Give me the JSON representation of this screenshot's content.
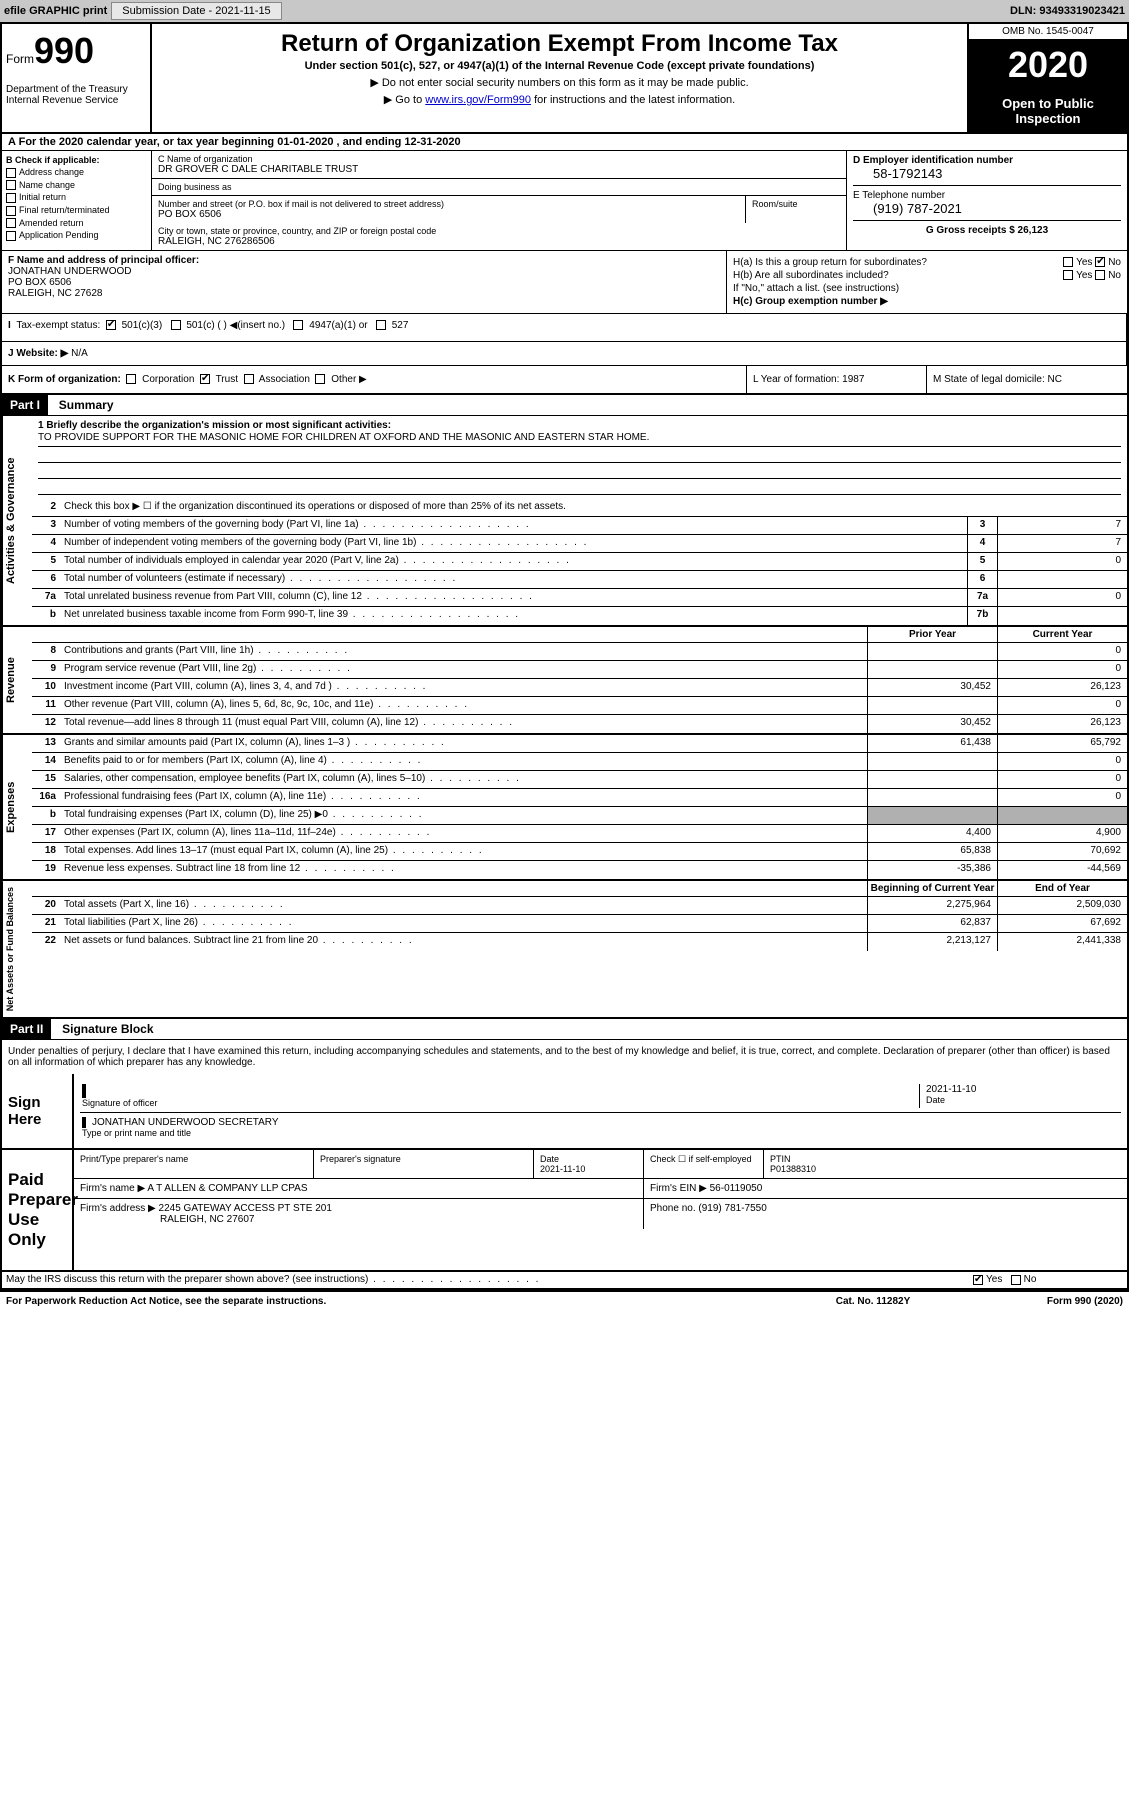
{
  "topbar": {
    "efile": "efile GRAPHIC print",
    "submission_label": "Submission Date - 2021-11-15",
    "dln": "DLN: 93493319023421"
  },
  "header": {
    "form_label": "Form",
    "form_number": "990",
    "dept": "Department of the Treasury\nInternal Revenue Service",
    "title": "Return of Organization Exempt From Income Tax",
    "subtitle": "Under section 501(c), 527, or 4947(a)(1) of the Internal Revenue Code (except private foundations)",
    "note1": "▶ Do not enter social security numbers on this form as it may be made public.",
    "note2_pre": "▶ Go to ",
    "note2_link": "www.irs.gov/Form990",
    "note2_post": " for instructions and the latest information.",
    "omb": "OMB No. 1545-0047",
    "year": "2020",
    "inspection": "Open to Public Inspection"
  },
  "period": {
    "text": "For the 2020 calendar year, or tax year beginning 01-01-2020   , and ending 12-31-2020"
  },
  "section_b": {
    "header": "B Check if applicable:",
    "items": [
      "Address change",
      "Name change",
      "Initial return",
      "Final return/terminated",
      "Amended return",
      "Application Pending"
    ]
  },
  "section_c": {
    "name_label": "C Name of organization",
    "name": "DR GROVER C DALE CHARITABLE TRUST",
    "dba_label": "Doing business as",
    "dba": "",
    "addr_label": "Number and street (or P.O. box if mail is not delivered to street address)",
    "room_label": "Room/suite",
    "addr": "PO BOX 6506",
    "city_label": "City or town, state or province, country, and ZIP or foreign postal code",
    "city": "RALEIGH, NC  276286506"
  },
  "section_d": {
    "ein_label": "D Employer identification number",
    "ein": "58-1792143",
    "phone_label": "E Telephone number",
    "phone": "(919) 787-2021",
    "gross_label": "G Gross receipts $ 26,123"
  },
  "section_f": {
    "label": "F  Name and address of principal officer:",
    "name": "JONATHAN UNDERWOOD",
    "addr": "PO BOX 6506",
    "city": "RALEIGH, NC  27628"
  },
  "section_h": {
    "ha_label": "H(a)  Is this a group return for subordinates?",
    "hb_label": "H(b)  Are all subordinates included?",
    "hb_note": "If \"No,\" attach a list. (see instructions)",
    "hc_label": "H(c)  Group exemption number ▶"
  },
  "section_i": {
    "label": "Tax-exempt status:",
    "opts": [
      "501(c)(3)",
      "501(c) (  ) ◀(insert no.)",
      "4947(a)(1) or",
      "527"
    ]
  },
  "section_j": {
    "label": "J   Website: ▶",
    "value": "N/A"
  },
  "section_k": {
    "label": "K Form of organization:",
    "opts": [
      "Corporation",
      "Trust",
      "Association",
      "Other ▶"
    ]
  },
  "section_l": {
    "label": "L Year of formation: 1987"
  },
  "section_m": {
    "label": "M State of legal domicile: NC"
  },
  "part1": {
    "header": "Part I",
    "title": "Summary",
    "line1_label": "1   Briefly describe the organization's mission or most significant activities:",
    "line1_text": "TO PROVIDE SUPPORT FOR THE MASONIC HOME FOR CHILDREN AT OXFORD AND THE MASONIC AND EASTERN STAR HOME.",
    "line2": "Check this box ▶ ☐  if the organization discontinued its operations or disposed of more than 25% of its net assets.",
    "gov_lines": [
      {
        "n": "3",
        "d": "Number of voting members of the governing body (Part VI, line 1a)",
        "box": "3",
        "v": "7"
      },
      {
        "n": "4",
        "d": "Number of independent voting members of the governing body (Part VI, line 1b)",
        "box": "4",
        "v": "7"
      },
      {
        "n": "5",
        "d": "Total number of individuals employed in calendar year 2020 (Part V, line 2a)",
        "box": "5",
        "v": "0"
      },
      {
        "n": "6",
        "d": "Total number of volunteers (estimate if necessary)",
        "box": "6",
        "v": ""
      },
      {
        "n": "7a",
        "d": "Total unrelated business revenue from Part VIII, column (C), line 12",
        "box": "7a",
        "v": "0"
      },
      {
        "n": "b",
        "d": "Net unrelated business taxable income from Form 990-T, line 39",
        "box": "7b",
        "v": ""
      }
    ],
    "col_headers": {
      "prior": "Prior Year",
      "current": "Current Year"
    },
    "rev_lines": [
      {
        "n": "8",
        "d": "Contributions and grants (Part VIII, line 1h)",
        "p": "",
        "c": "0"
      },
      {
        "n": "9",
        "d": "Program service revenue (Part VIII, line 2g)",
        "p": "",
        "c": "0"
      },
      {
        "n": "10",
        "d": "Investment income (Part VIII, column (A), lines 3, 4, and 7d )",
        "p": "30,452",
        "c": "26,123"
      },
      {
        "n": "11",
        "d": "Other revenue (Part VIII, column (A), lines 5, 6d, 8c, 9c, 10c, and 11e)",
        "p": "",
        "c": "0"
      },
      {
        "n": "12",
        "d": "Total revenue—add lines 8 through 11 (must equal Part VIII, column (A), line 12)",
        "p": "30,452",
        "c": "26,123"
      }
    ],
    "exp_lines": [
      {
        "n": "13",
        "d": "Grants and similar amounts paid (Part IX, column (A), lines 1–3 )",
        "p": "61,438",
        "c": "65,792"
      },
      {
        "n": "14",
        "d": "Benefits paid to or for members (Part IX, column (A), line 4)",
        "p": "",
        "c": "0"
      },
      {
        "n": "15",
        "d": "Salaries, other compensation, employee benefits (Part IX, column (A), lines 5–10)",
        "p": "",
        "c": "0"
      },
      {
        "n": "16a",
        "d": "Professional fundraising fees (Part IX, column (A), line 11e)",
        "p": "",
        "c": "0"
      },
      {
        "n": "b",
        "d": "Total fundraising expenses (Part IX, column (D), line 25) ▶0",
        "p": "shade",
        "c": "shade"
      },
      {
        "n": "17",
        "d": "Other expenses (Part IX, column (A), lines 11a–11d, 11f–24e)",
        "p": "4,400",
        "c": "4,900"
      },
      {
        "n": "18",
        "d": "Total expenses. Add lines 13–17 (must equal Part IX, column (A), line 25)",
        "p": "65,838",
        "c": "70,692"
      },
      {
        "n": "19",
        "d": "Revenue less expenses. Subtract line 18 from line 12",
        "p": "-35,386",
        "c": "-44,569"
      }
    ],
    "net_headers": {
      "begin": "Beginning of Current Year",
      "end": "End of Year"
    },
    "net_lines": [
      {
        "n": "20",
        "d": "Total assets (Part X, line 16)",
        "p": "2,275,964",
        "c": "2,509,030"
      },
      {
        "n": "21",
        "d": "Total liabilities (Part X, line 26)",
        "p": "62,837",
        "c": "67,692"
      },
      {
        "n": "22",
        "d": "Net assets or fund balances. Subtract line 21 from line 20",
        "p": "2,213,127",
        "c": "2,441,338"
      }
    ],
    "vert_labels": {
      "gov": "Activities & Governance",
      "rev": "Revenue",
      "exp": "Expenses",
      "net": "Net Assets or Fund Balances"
    }
  },
  "part2": {
    "header": "Part II",
    "title": "Signature Block",
    "perjury": "Under penalties of perjury, I declare that I have examined this return, including accompanying schedules and statements, and to the best of my knowledge and belief, it is true, correct, and complete. Declaration of preparer (other than officer) is based on all information of which preparer has any knowledge.",
    "sign_here": "Sign Here",
    "sig_officer": "Signature of officer",
    "sig_date": "2021-11-10",
    "sig_date_label": "Date",
    "officer_name": "JONATHAN UNDERWOOD SECRETARY",
    "officer_name_label": "Type or print name and title",
    "paid": "Paid Preparer Use Only",
    "prep_headers": [
      "Print/Type preparer's name",
      "Preparer's signature",
      "Date\n2021-11-10",
      "Check ☐ if self-employed",
      "PTIN\nP01388310"
    ],
    "firm_name_label": "Firm's name    ▶",
    "firm_name": "A T ALLEN & COMPANY LLP CPAS",
    "firm_ein_label": "Firm's EIN ▶",
    "firm_ein": "56-0119050",
    "firm_addr_label": "Firm's address ▶",
    "firm_addr": "2245 GATEWAY ACCESS PT STE 201",
    "firm_city": "RALEIGH, NC  27607",
    "phone_label": "Phone no.",
    "phone": "(919) 781-7550",
    "discuss": "May the IRS discuss this return with the preparer shown above? (see instructions)"
  },
  "footer": {
    "paperwork": "For Paperwork Reduction Act Notice, see the separate instructions.",
    "cat": "Cat. No. 11282Y",
    "form": "Form 990 (2020)"
  }
}
